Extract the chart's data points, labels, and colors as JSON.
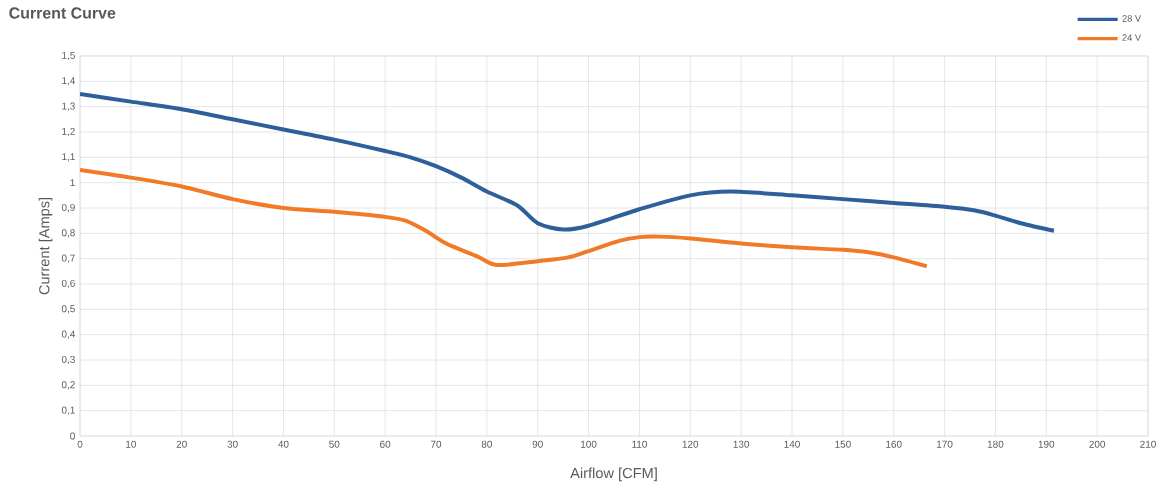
{
  "chart_data": {
    "type": "line",
    "title": "Current Curve",
    "xlabel": "Airflow [CFM]",
    "ylabel": "Current [Amps]",
    "xlim": [
      0,
      210
    ],
    "xticks": [
      0,
      10,
      20,
      30,
      40,
      50,
      60,
      70,
      80,
      90,
      100,
      110,
      120,
      130,
      140,
      150,
      160,
      170,
      180,
      190,
      200,
      210
    ],
    "ylim": [
      0,
      1.5
    ],
    "yticks": [
      0,
      {
        "value": 0.1,
        "label": "0,1"
      },
      {
        "value": 0.2,
        "label": "0,2"
      },
      {
        "value": 0.3,
        "label": "0,3"
      },
      {
        "value": 0.4,
        "label": "0,4"
      },
      {
        "value": 0.5,
        "label": "0,5"
      },
      {
        "value": 0.6,
        "label": "0,6"
      },
      {
        "value": 0.7,
        "label": "0,7"
      },
      {
        "value": 0.8,
        "label": "0,8"
      },
      {
        "value": 0.9,
        "label": "0,9"
      },
      1,
      {
        "value": 1.1,
        "label": "1,1"
      },
      {
        "value": 1.2,
        "label": "1,2"
      },
      {
        "value": 1.3,
        "label": "1,3"
      },
      {
        "value": 1.4,
        "label": "1,4"
      },
      {
        "value": 1.5,
        "label": "1,5"
      }
    ],
    "grid": true,
    "legend": "top right",
    "marker": "none",
    "line_style": "solid",
    "series": [
      {
        "name": "28 V",
        "color": "#2e5f9a",
        "x": [
          0,
          10,
          20,
          30,
          40,
          50,
          60,
          65,
          70,
          75,
          80,
          86,
          90,
          95,
          100,
          110,
          120,
          128,
          140,
          150,
          160,
          170,
          176,
          180,
          185,
          191.5
        ],
        "values": [
          1.35,
          1.32,
          1.29,
          1.25,
          1.21,
          1.17,
          1.125,
          1.1,
          1.065,
          1.02,
          0.965,
          0.91,
          0.84,
          0.815,
          0.83,
          0.895,
          0.95,
          0.965,
          0.95,
          0.935,
          0.92,
          0.905,
          0.89,
          0.87,
          0.84,
          0.81
        ]
      },
      {
        "name": "24 V",
        "color": "#f07a26",
        "x": [
          0,
          10,
          20,
          30,
          40,
          50,
          60,
          64,
          68,
          72,
          78,
          82,
          90,
          96,
          100,
          106,
          110,
          114,
          120,
          130,
          140,
          150,
          155,
          160,
          166.5
        ],
        "values": [
          1.05,
          1.02,
          0.985,
          0.935,
          0.9,
          0.885,
          0.865,
          0.85,
          0.81,
          0.76,
          0.71,
          0.675,
          0.69,
          0.705,
          0.73,
          0.77,
          0.785,
          0.787,
          0.78,
          0.76,
          0.745,
          0.735,
          0.725,
          0.705,
          0.67
        ]
      }
    ]
  }
}
